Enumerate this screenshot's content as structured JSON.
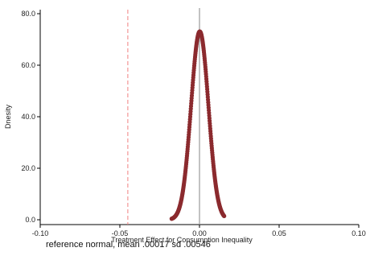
{
  "chart_data": {
    "type": "scatter",
    "xlabel": "Treatment Effect for Consumption Inequality",
    "ylabel": "Dnesity",
    "xlim": [
      -0.1,
      0.1
    ],
    "ylim": [
      0,
      80
    ],
    "x_ticks": [
      "-0.10",
      "-0.05",
      "0.00",
      "0.05",
      "0.10"
    ],
    "x_tick_values": [
      -0.1,
      -0.05,
      0,
      0.05,
      0.1
    ],
    "y_ticks": [
      "0.0",
      "20.0",
      "40.0",
      "60.0",
      "80.0"
    ],
    "y_tick_values": [
      0,
      20,
      40,
      60,
      80
    ],
    "distribution": {
      "mean": 0.00017,
      "sd": 0.00546,
      "x_min": -0.0175,
      "x_max": 0.0155
    },
    "observed_effect": -0.045,
    "zero_line": 0,
    "grid": false,
    "legend": "none",
    "colors": {
      "points": "#8b2a2e",
      "observed_line": "#f08080",
      "zero_line": "#9a9a9a",
      "axis": "#000000"
    },
    "note": "reference normal, mean .00017 sd .00546"
  }
}
